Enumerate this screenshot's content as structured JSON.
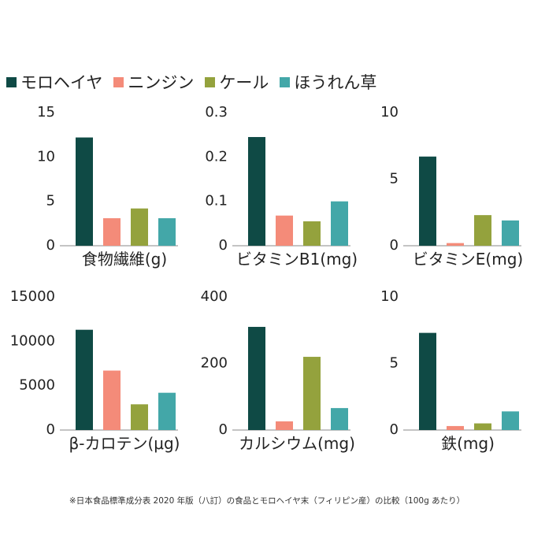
{
  "legend": [
    {
      "label": "モロヘイヤ",
      "color": "#0f4a45"
    },
    {
      "label": "ニンジン",
      "color": "#f48b79"
    },
    {
      "label": "ケール",
      "color": "#94a23d"
    },
    {
      "label": "ほうれん草",
      "color": "#43a7a8"
    }
  ],
  "chart_data": [
    {
      "type": "bar",
      "title": "食物繊維(g)",
      "categories": [
        "モロヘイヤ",
        "ニンジン",
        "ケール",
        "ほうれん草"
      ],
      "values": [
        12.2,
        3.1,
        4.2,
        3.1
      ],
      "ylim": [
        0,
        15
      ],
      "yticks": [
        "15",
        "10",
        "5",
        "0"
      ],
      "ytick_values": [
        15,
        10,
        5,
        0
      ]
    },
    {
      "type": "bar",
      "title": "ビタミンB1(mg)",
      "categories": [
        "モロヘイヤ",
        "ニンジン",
        "ケール",
        "ほうれん草"
      ],
      "values": [
        0.245,
        0.068,
        0.055,
        0.1
      ],
      "ylim": [
        0,
        0.3
      ],
      "yticks": [
        "0.3",
        "0.2",
        "0.1",
        "0"
      ],
      "ytick_values": [
        0.3,
        0.2,
        0.1,
        0
      ]
    },
    {
      "type": "bar",
      "title": "ビタミンE(mg)",
      "categories": [
        "モロヘイヤ",
        "ニンジン",
        "ケール",
        "ほうれん草"
      ],
      "values": [
        6.7,
        0.2,
        2.3,
        1.9
      ],
      "ylim": [
        0,
        10
      ],
      "yticks": [
        "10",
        "5",
        "0"
      ],
      "ytick_values": [
        10,
        5,
        0
      ]
    },
    {
      "type": "bar",
      "title": "β-カロテン(μg)",
      "categories": [
        "モロヘイヤ",
        "ニンジン",
        "ケール",
        "ほうれん草"
      ],
      "values": [
        11300,
        6700,
        2900,
        4200
      ],
      "ylim": [
        0,
        15000
      ],
      "yticks": [
        "15000",
        "10000",
        "5000",
        "0"
      ],
      "ytick_values": [
        15000,
        10000,
        5000,
        0
      ]
    },
    {
      "type": "bar",
      "title": "カルシウム(mg)",
      "categories": [
        "モロヘイヤ",
        "ニンジン",
        "ケール",
        "ほうれん草"
      ],
      "values": [
        310,
        26,
        220,
        66
      ],
      "ylim": [
        0,
        400
      ],
      "yticks": [
        "400",
        "200",
        "0"
      ],
      "ytick_values": [
        400,
        200,
        0
      ]
    },
    {
      "type": "bar",
      "title": "鉄(mg)",
      "categories": [
        "モロヘイヤ",
        "ニンジン",
        "ケール",
        "ほうれん草"
      ],
      "values": [
        7.3,
        0.3,
        0.5,
        1.4
      ],
      "ylim": [
        0,
        10
      ],
      "yticks": [
        "10",
        "5",
        "0"
      ],
      "ytick_values": [
        10,
        5,
        0
      ]
    }
  ],
  "footnote": "※日本食品標準成分表 2020 年版（八訂）の食品とモロヘイヤ末（フィリピン産）の比較（100g あたり）"
}
